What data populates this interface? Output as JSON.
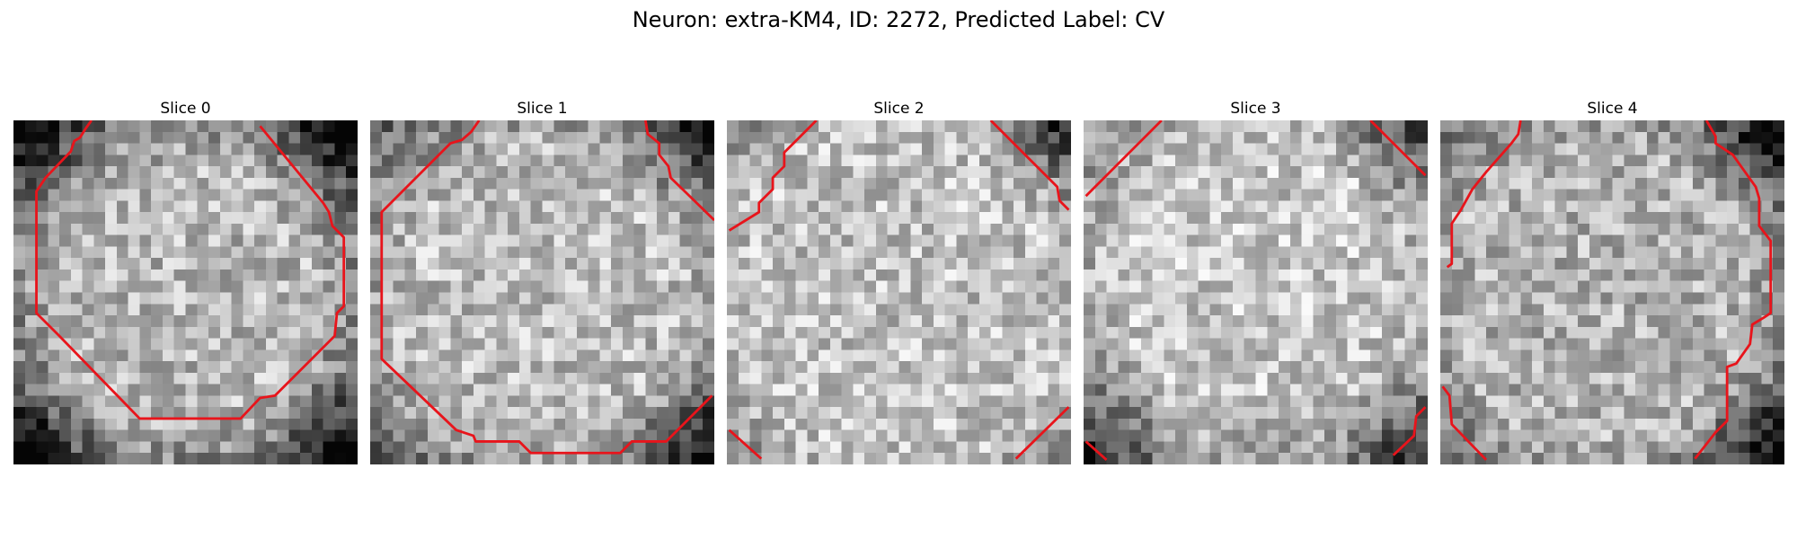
{
  "figure": {
    "title": "Neuron: extra-KM4, ID: 2272, Predicted Label: CV"
  },
  "panels": [
    {
      "title": "Slice 0"
    },
    {
      "title": "Slice 1"
    },
    {
      "title": "Slice 2"
    },
    {
      "title": "Slice 3"
    },
    {
      "title": "Slice 4"
    }
  ],
  "image": {
    "colormap": "gray",
    "grid_cells": 30,
    "contour_color": "#e8141b"
  }
}
